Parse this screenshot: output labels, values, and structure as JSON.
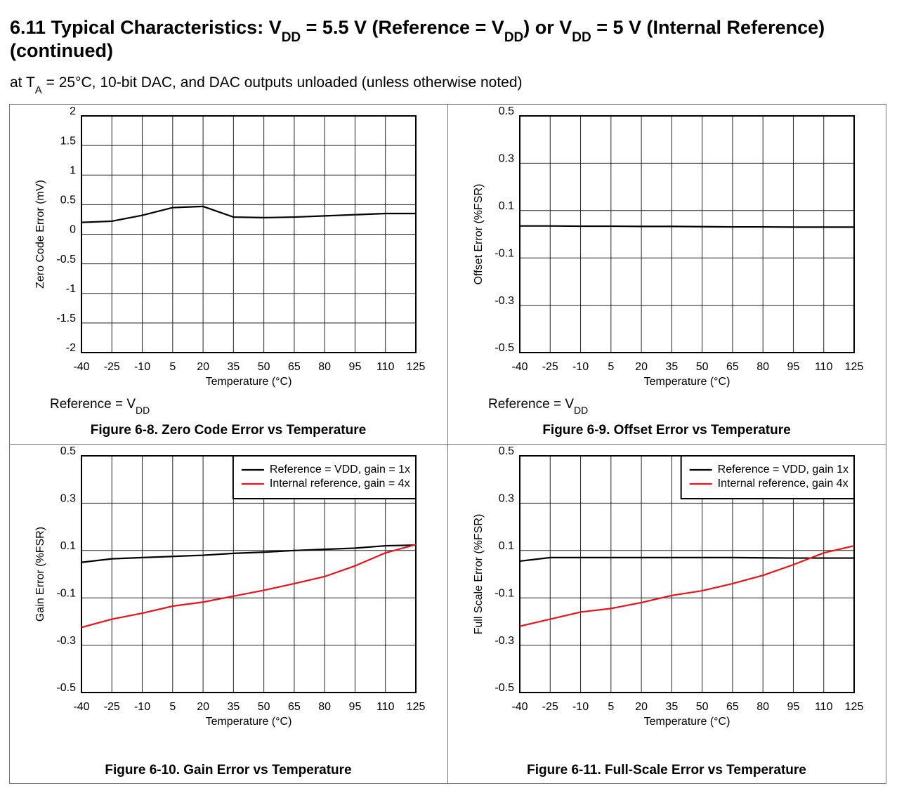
{
  "header": {
    "title_lines": [
      [
        "6.11 Typical Characteristics: V",
        "DD",
        " = 5.5 V (Reference = V",
        "DD",
        ") or V",
        "DD",
        " = 5 V (Internal Reference)"
      ],
      [
        "(continued)"
      ]
    ],
    "subtitle_parts": [
      "at T",
      "A",
      " = 25°C, 10-bit DAC, and DAC outputs unloaded (unless otherwise noted)"
    ]
  },
  "chart_data": [
    {
      "type": "line",
      "title": "Figure 6-8. Zero Code Error vs Temperature",
      "xlabel": "Temperature (°C)",
      "ylabel": "Zero Code Error (mV)",
      "note_parts": [
        "Reference = V",
        "DD"
      ],
      "x": [
        -40,
        -25,
        -10,
        5,
        20,
        35,
        50,
        65,
        80,
        95,
        110,
        125
      ],
      "xlim": [
        -40,
        125
      ],
      "xticks": [
        -40,
        -25,
        -10,
        5,
        20,
        35,
        50,
        65,
        80,
        95,
        110,
        125
      ],
      "ylim": [
        -2,
        2
      ],
      "yticks": [
        -2,
        -1.5,
        -1,
        -0.5,
        0,
        0.5,
        1,
        1.5,
        2
      ],
      "grid": true,
      "series": [
        {
          "name": null,
          "color": "#000000",
          "values": [
            0.2,
            0.22,
            0.32,
            0.45,
            0.47,
            0.29,
            0.28,
            0.29,
            0.31,
            0.33,
            0.35,
            0.35
          ]
        }
      ]
    },
    {
      "type": "line",
      "title": "Figure 6-9. Offset Error vs Temperature",
      "xlabel": "Temperature (°C)",
      "ylabel": "Offset Error (%FSR)",
      "note_parts": [
        "Reference = V",
        "DD"
      ],
      "x": [
        -40,
        -25,
        -10,
        5,
        20,
        35,
        50,
        65,
        80,
        95,
        110,
        125
      ],
      "xlim": [
        -40,
        125
      ],
      "xticks": [
        -40,
        -25,
        -10,
        5,
        20,
        35,
        50,
        65,
        80,
        95,
        110,
        125
      ],
      "ylim": [
        -0.5,
        0.5
      ],
      "yticks": [
        -0.5,
        -0.3,
        -0.1,
        0.1,
        0.3,
        0.5
      ],
      "grid": true,
      "series": [
        {
          "name": null,
          "color": "#000000",
          "values": [
            0.035,
            0.035,
            0.034,
            0.034,
            0.033,
            0.033,
            0.032,
            0.031,
            0.031,
            0.03,
            0.03,
            0.03
          ]
        }
      ]
    },
    {
      "type": "line",
      "title": "Figure 6-10. Gain Error vs Temperature",
      "xlabel": "Temperature (°C)",
      "ylabel": "Gain Error (%FSR)",
      "x": [
        -40,
        -25,
        -10,
        5,
        20,
        35,
        50,
        65,
        80,
        95,
        110,
        125
      ],
      "xlim": [
        -40,
        125
      ],
      "xticks": [
        -40,
        -25,
        -10,
        5,
        20,
        35,
        50,
        65,
        80,
        95,
        110,
        125
      ],
      "ylim": [
        -0.5,
        0.5
      ],
      "yticks": [
        -0.5,
        -0.3,
        -0.1,
        0.1,
        0.3,
        0.5
      ],
      "grid": true,
      "legend": "upper right",
      "series": [
        {
          "name": "Reference = VDD, gain = 1x",
          "color": "#000000",
          "values": [
            0.05,
            0.065,
            0.07,
            0.075,
            0.08,
            0.088,
            0.093,
            0.1,
            0.105,
            0.11,
            0.12,
            0.123
          ]
        },
        {
          "name": "Internal reference, gain = 4x",
          "color": "#e8141b",
          "values": [
            -0.225,
            -0.19,
            -0.165,
            -0.135,
            -0.118,
            -0.093,
            -0.068,
            -0.04,
            -0.01,
            0.035,
            0.09,
            0.125
          ]
        }
      ]
    },
    {
      "type": "line",
      "title": "Figure 6-11. Full-Scale Error vs Temperature",
      "xlabel": "Temperature (°C)",
      "ylabel": "Full Scale Error (%FSR)",
      "x": [
        -40,
        -25,
        -10,
        5,
        20,
        35,
        50,
        65,
        80,
        95,
        110,
        125
      ],
      "xlim": [
        -40,
        125
      ],
      "xticks": [
        -40,
        -25,
        -10,
        5,
        20,
        35,
        50,
        65,
        80,
        95,
        110,
        125
      ],
      "ylim": [
        -0.5,
        0.5
      ],
      "yticks": [
        -0.5,
        -0.3,
        -0.1,
        0.1,
        0.3,
        0.5
      ],
      "grid": true,
      "legend": "upper right",
      "series": [
        {
          "name": "Reference = VDD, gain 1x",
          "color": "#000000",
          "values": [
            0.055,
            0.07,
            0.07,
            0.07,
            0.07,
            0.07,
            0.07,
            0.07,
            0.069,
            0.068,
            0.068,
            0.068
          ]
        },
        {
          "name": "Internal reference, gain 4x",
          "color": "#e8141b",
          "values": [
            -0.22,
            -0.19,
            -0.16,
            -0.145,
            -0.12,
            -0.09,
            -0.07,
            -0.04,
            -0.005,
            0.04,
            0.09,
            0.12
          ]
        }
      ]
    }
  ]
}
